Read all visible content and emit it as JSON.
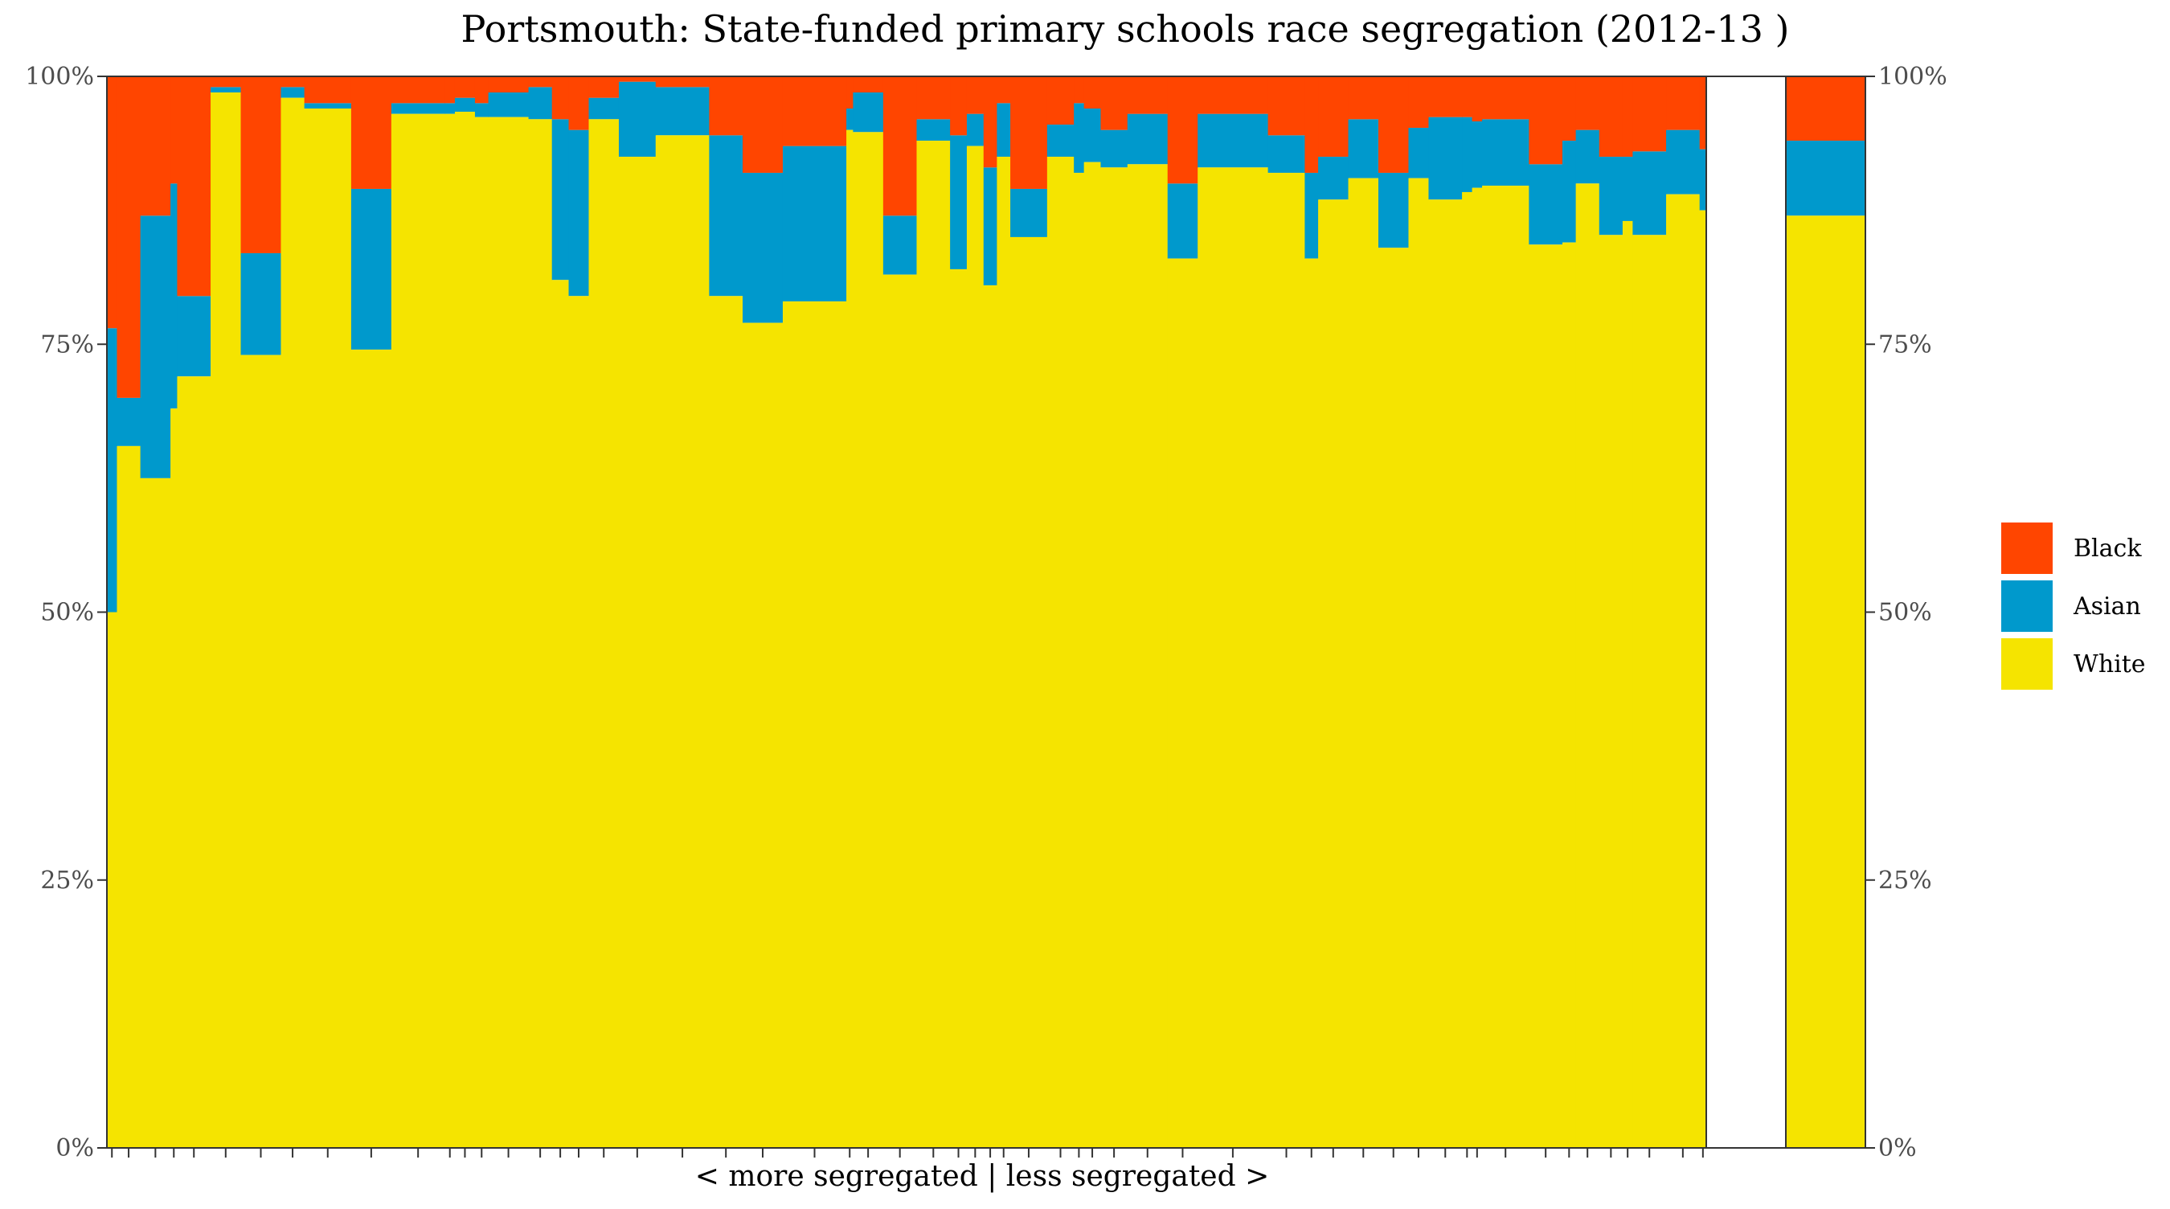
{
  "chart_data": {
    "type": "bar",
    "title": "Portsmouth: State-funded primary schools race segregation (2012-13 )",
    "xlabel": "< more segregated | less segregated >",
    "ylabel": "",
    "ylim": [
      0,
      1
    ],
    "y_ticks": [
      "0%",
      "25%",
      "50%",
      "75%",
      "100%"
    ],
    "y_tick_values": [
      0,
      0.25,
      0.5,
      0.75,
      1
    ],
    "legend": {
      "position": "right",
      "entries": [
        {
          "name": "Black",
          "color": "#FF4500"
        },
        {
          "name": "Asian",
          "color": "#0099CC"
        },
        {
          "name": "White",
          "color": "#F5E400"
        }
      ]
    },
    "colors": {
      "Black": "#FF4500",
      "Asian": "#0099CC",
      "White": "#F5E400"
    },
    "schools": [
      {
        "pupils": 3,
        "white": 0.5,
        "asian": 0.765
      },
      {
        "pupils": 7,
        "white": 0.655,
        "asian": 0.7
      },
      {
        "pupils": 9,
        "white": 0.625,
        "asian": 0.87
      },
      {
        "pupils": 2,
        "white": 0.69,
        "asian": 0.9
      },
      {
        "pupils": 10,
        "white": 0.72,
        "asian": 0.795
      },
      {
        "pupils": 9,
        "white": 0.985,
        "asian": 0.99
      },
      {
        "pupils": 12,
        "white": 0.74,
        "asian": 0.835
      },
      {
        "pupils": 7,
        "white": 0.98,
        "asian": 0.99
      },
      {
        "pupils": 14,
        "white": 0.97,
        "asian": 0.975
      },
      {
        "pupils": 12,
        "white": 0.745,
        "asian": 0.895
      },
      {
        "pupils": 16,
        "white": 0.965,
        "asian": 0.975
      },
      {
        "pupils": 3,
        "white": 0.965,
        "asian": 0.975
      },
      {
        "pupils": 6,
        "white": 0.967,
        "asian": 0.98
      },
      {
        "pupils": 4,
        "white": 0.962,
        "asian": 0.975
      },
      {
        "pupils": 12,
        "white": 0.962,
        "asian": 0.985
      },
      {
        "pupils": 7,
        "white": 0.96,
        "asian": 0.99
      },
      {
        "pupils": 5,
        "white": 0.81,
        "asian": 0.96
      },
      {
        "pupils": 6,
        "white": 0.795,
        "asian": 0.95
      },
      {
        "pupils": 9,
        "white": 0.96,
        "asian": 0.98
      },
      {
        "pupils": 11,
        "white": 0.925,
        "asian": 0.995
      },
      {
        "pupils": 16,
        "white": 0.945,
        "asian": 0.99
      },
      {
        "pupils": 10,
        "white": 0.795,
        "asian": 0.945
      },
      {
        "pupils": 12,
        "white": 0.77,
        "asian": 0.91
      },
      {
        "pupils": 19,
        "white": 0.79,
        "asian": 0.935
      },
      {
        "pupils": 2,
        "white": 0.95,
        "asian": 0.97
      },
      {
        "pupils": 9,
        "white": 0.948,
        "asian": 0.985
      },
      {
        "pupils": 10,
        "white": 0.815,
        "asian": 0.87
      },
      {
        "pupils": 10,
        "white": 0.94,
        "asian": 0.96
      },
      {
        "pupils": 5,
        "white": 0.82,
        "asian": 0.945
      },
      {
        "pupils": 5,
        "white": 0.935,
        "asian": 0.965
      },
      {
        "pupils": 4,
        "white": 0.805,
        "asian": 0.915
      },
      {
        "pupils": 4,
        "white": 0.925,
        "asian": 0.975
      },
      {
        "pupils": 11,
        "white": 0.85,
        "asian": 0.895
      },
      {
        "pupils": 8,
        "white": 0.925,
        "asian": 0.955
      },
      {
        "pupils": 3,
        "white": 0.91,
        "asian": 0.975
      },
      {
        "pupils": 5,
        "white": 0.92,
        "asian": 0.97
      },
      {
        "pupils": 8,
        "white": 0.915,
        "asian": 0.95
      },
      {
        "pupils": 12,
        "white": 0.918,
        "asian": 0.965
      },
      {
        "pupils": 9,
        "white": 0.83,
        "asian": 0.9
      },
      {
        "pupils": 21,
        "white": 0.915,
        "asian": 0.965
      },
      {
        "pupils": 11,
        "white": 0.91,
        "asian": 0.945
      },
      {
        "pupils": 4,
        "white": 0.83,
        "asian": 0.91
      },
      {
        "pupils": 9,
        "white": 0.885,
        "asian": 0.925
      },
      {
        "pupils": 9,
        "white": 0.905,
        "asian": 0.96
      },
      {
        "pupils": 9,
        "white": 0.84,
        "asian": 0.91
      },
      {
        "pupils": 6,
        "white": 0.905,
        "asian": 0.952
      },
      {
        "pupils": 10,
        "white": 0.885,
        "asian": 0.962
      },
      {
        "pupils": 3,
        "white": 0.892,
        "asian": 0.962
      },
      {
        "pupils": 3,
        "white": 0.896,
        "asian": 0.958
      },
      {
        "pupils": 14,
        "white": 0.898,
        "asian": 0.96
      },
      {
        "pupils": 10,
        "white": 0.843,
        "asian": 0.918
      },
      {
        "pupils": 4,
        "white": 0.845,
        "asian": 0.94
      },
      {
        "pupils": 7,
        "white": 0.9,
        "asian": 0.95
      },
      {
        "pupils": 7,
        "white": 0.852,
        "asian": 0.925
      },
      {
        "pupils": 3,
        "white": 0.865,
        "asian": 0.925
      },
      {
        "pupils": 10,
        "white": 0.852,
        "asian": 0.93
      },
      {
        "pupils": 10,
        "white": 0.89,
        "asian": 0.95
      },
      {
        "pupils": 2,
        "white": 0.875,
        "asian": 0.932
      }
    ],
    "total": {
      "white": 0.87,
      "asian": 0.94
    }
  }
}
